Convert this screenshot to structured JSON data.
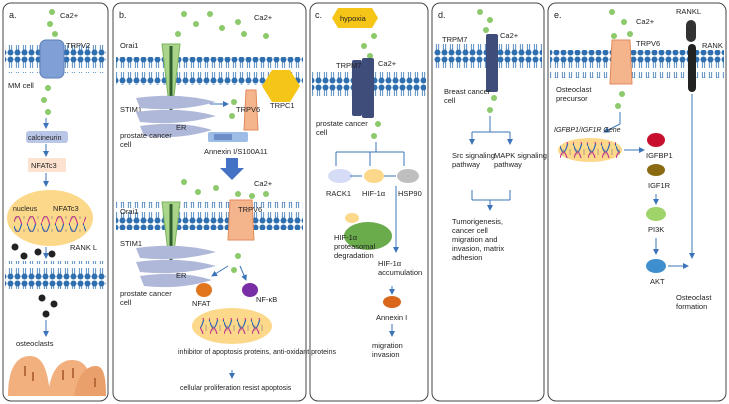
{
  "panels": {
    "a": {
      "letter": "a.",
      "ca": "Ca2+",
      "channel": "TRPV2",
      "cell": "MM cell",
      "calcineurin": "calcineurin",
      "nfatc3": "NFATc3",
      "nucleus": "nucleus",
      "nfatc3_nuc": "NFATc3",
      "rankl": "RANK L",
      "osteoclasts": "osteoclasts"
    },
    "b": {
      "letter": "b.",
      "ca_top": "Ca2+",
      "orai_top": "Orai1",
      "stim_top": "STIM1",
      "er_top": "ER",
      "trpv6_top": "TRPV6",
      "trpc1": "TRPC1",
      "cell_top": "prostate cancer cell",
      "annexin": "Annexin I/S100A11",
      "ca_bot": "Ca2+",
      "orai_bot": "Orai1",
      "trpv6_bot": "TRPV6",
      "stim_bot": "STIM1",
      "er_bot": "ER",
      "cell_bot": "prostate cancer cell",
      "nfat": "NFAT",
      "nfkb": "NF-κB",
      "outcome1": "inhibitor of apoptosis proteins, anti-oxidant proteins",
      "outcome2": "cellular proliferation resist apoptosis"
    },
    "c": {
      "letter": "c.",
      "hypoxia": "hypoxia",
      "trpm7": "TRPM7",
      "ca": "Ca2+",
      "cell": "prostate cancer cell",
      "rack1": "RACK1",
      "hif_small": "HIF-1α",
      "hsp90": "HSP90",
      "hif_deg": "HIF-1α proteasomal degradation",
      "hif_acc": "HIF-1α accumulation",
      "annexin": "Annexin I",
      "outcome": "migration invasion"
    },
    "d": {
      "letter": "d.",
      "trpm7": "TRPM7",
      "ca": "Ca2+",
      "cell": "Breast cancer cell",
      "src": "Src signaling pathway",
      "mapk": "MAPK signaling pathway",
      "outcome": "Tumorigenesis, cancer cell migration and invasion, matrix adhesion"
    },
    "e": {
      "letter": "e.",
      "ca": "Ca2+",
      "trpv6": "TRPV6",
      "rankl": "RANKL",
      "rank": "RANK",
      "precursor": "Osteoclast precursor",
      "gene": "IGFBP1/IGF1R Gene",
      "igfbp1": "IGFBP1",
      "igf1r": "IGF1R",
      "pi3k": "PI3K",
      "akt": "AKT",
      "formation": "Osteoclast formation"
    }
  }
}
